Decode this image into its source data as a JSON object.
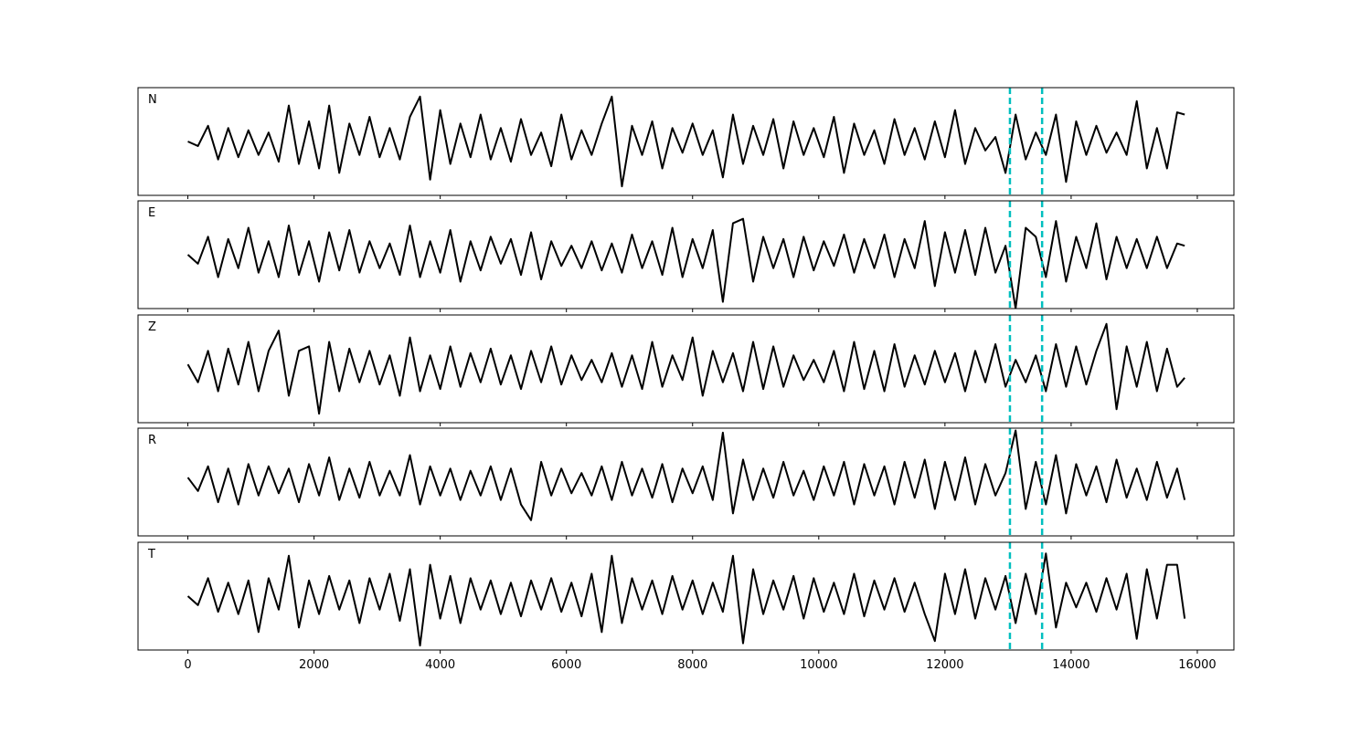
{
  "chart_data": {
    "type": "line",
    "x": [
      0,
      160,
      320,
      480,
      640,
      800,
      960,
      1120,
      1280,
      1440,
      1600,
      1760,
      1920,
      2080,
      2240,
      2400,
      2560,
      2720,
      2880,
      3040,
      3200,
      3360,
      3520,
      3680,
      3840,
      4000,
      4160,
      4320,
      4480,
      4640,
      4800,
      4960,
      5120,
      5280,
      5440,
      5600,
      5760,
      5920,
      6080,
      6240,
      6400,
      6560,
      6720,
      6880,
      7040,
      7200,
      7360,
      7520,
      7680,
      7840,
      8000,
      8160,
      8320,
      8480,
      8640,
      8800,
      8960,
      9120,
      9280,
      9440,
      9600,
      9760,
      9920,
      10080,
      10240,
      10400,
      10560,
      10720,
      10880,
      11040,
      11200,
      11360,
      11520,
      11680,
      11840,
      12000,
      12160,
      12320,
      12480,
      12640,
      12800,
      12960,
      13120,
      13280,
      13440,
      13600,
      13760,
      13920,
      14080,
      14240,
      14400,
      14560,
      14720,
      14880,
      15040,
      15200,
      15360,
      15520,
      15680,
      15800
    ],
    "series": [
      {
        "name": "N",
        "color": "#000000",
        "values": [
          0.0,
          -0.1,
          0.35,
          -0.4,
          0.3,
          -0.35,
          0.25,
          -0.3,
          0.2,
          -0.45,
          0.8,
          -0.5,
          0.45,
          -0.6,
          0.8,
          -0.7,
          0.4,
          -0.3,
          0.55,
          -0.35,
          0.3,
          -0.4,
          0.55,
          1.0,
          -0.85,
          0.7,
          -0.5,
          0.4,
          -0.35,
          0.6,
          -0.4,
          0.3,
          -0.45,
          0.5,
          -0.3,
          0.2,
          -0.55,
          0.6,
          -0.4,
          0.25,
          -0.3,
          0.4,
          1.0,
          -1.0,
          0.35,
          -0.3,
          0.45,
          -0.6,
          0.3,
          -0.25,
          0.4,
          -0.3,
          0.25,
          -0.8,
          0.6,
          -0.5,
          0.35,
          -0.3,
          0.5,
          -0.6,
          0.45,
          -0.3,
          0.3,
          -0.35,
          0.55,
          -0.7,
          0.4,
          -0.3,
          0.25,
          -0.5,
          0.5,
          -0.3,
          0.3,
          -0.4,
          0.45,
          -0.35,
          0.7,
          -0.5,
          0.3,
          -0.2,
          0.1,
          -0.7,
          0.6,
          -0.4,
          0.2,
          -0.3,
          0.6,
          -0.9,
          0.45,
          -0.3,
          0.35,
          -0.25,
          0.2,
          -0.3,
          0.9,
          -0.6,
          0.3,
          -0.6,
          0.65,
          0.6
        ]
      },
      {
        "name": "E",
        "color": "#000000",
        "values": [
          0.0,
          -0.2,
          0.4,
          -0.5,
          0.35,
          -0.3,
          0.6,
          -0.4,
          0.3,
          -0.5,
          0.65,
          -0.45,
          0.3,
          -0.6,
          0.5,
          -0.35,
          0.55,
          -0.4,
          0.3,
          -0.3,
          0.25,
          -0.45,
          0.65,
          -0.5,
          0.3,
          -0.4,
          0.55,
          -0.6,
          0.3,
          -0.35,
          0.4,
          -0.2,
          0.35,
          -0.45,
          0.5,
          -0.55,
          0.3,
          -0.25,
          0.2,
          -0.3,
          0.3,
          -0.35,
          0.25,
          -0.4,
          0.45,
          -0.3,
          0.3,
          -0.45,
          0.6,
          -0.5,
          0.35,
          -0.3,
          0.55,
          -1.05,
          0.7,
          0.8,
          -0.6,
          0.4,
          -0.3,
          0.35,
          -0.5,
          0.4,
          -0.35,
          0.3,
          -0.25,
          0.45,
          -0.4,
          0.35,
          -0.3,
          0.45,
          -0.5,
          0.35,
          -0.3,
          0.75,
          -0.7,
          0.5,
          -0.4,
          0.55,
          -0.45,
          0.6,
          -0.4,
          0.2,
          -1.2,
          0.6,
          0.4,
          -0.5,
          0.75,
          -0.6,
          0.4,
          -0.3,
          0.7,
          -0.55,
          0.4,
          -0.3,
          0.35,
          -0.3,
          0.4,
          -0.3,
          0.25,
          0.2
        ]
      },
      {
        "name": "Z",
        "color": "#000000",
        "values": [
          0.1,
          -0.3,
          0.4,
          -0.5,
          0.45,
          -0.35,
          0.6,
          -0.5,
          0.4,
          0.85,
          -0.6,
          0.4,
          0.5,
          -1.0,
          0.6,
          -0.5,
          0.45,
          -0.3,
          0.4,
          -0.35,
          0.3,
          -0.6,
          0.7,
          -0.5,
          0.3,
          -0.45,
          0.5,
          -0.4,
          0.35,
          -0.3,
          0.45,
          -0.35,
          0.3,
          -0.45,
          0.4,
          -0.3,
          0.5,
          -0.35,
          0.3,
          -0.25,
          0.2,
          -0.3,
          0.35,
          -0.4,
          0.3,
          -0.45,
          0.6,
          -0.4,
          0.3,
          -0.25,
          0.7,
          -0.6,
          0.4,
          -0.3,
          0.35,
          -0.5,
          0.6,
          -0.45,
          0.5,
          -0.4,
          0.3,
          -0.25,
          0.2,
          -0.3,
          0.4,
          -0.5,
          0.6,
          -0.45,
          0.4,
          -0.5,
          0.55,
          -0.4,
          0.3,
          -0.35,
          0.4,
          -0.3,
          0.35,
          -0.5,
          0.4,
          -0.3,
          0.55,
          -0.4,
          0.2,
          -0.3,
          0.3,
          -0.5,
          0.55,
          -0.4,
          0.5,
          -0.35,
          0.4,
          1.0,
          -0.9,
          0.5,
          -0.4,
          0.6,
          -0.5,
          0.45,
          -0.4,
          -0.2
        ]
      },
      {
        "name": "R",
        "color": "#000000",
        "values": [
          0.1,
          -0.2,
          0.35,
          -0.45,
          0.3,
          -0.5,
          0.4,
          -0.3,
          0.35,
          -0.25,
          0.3,
          -0.45,
          0.4,
          -0.3,
          0.55,
          -0.4,
          0.3,
          -0.35,
          0.45,
          -0.3,
          0.25,
          -0.3,
          0.6,
          -0.5,
          0.35,
          -0.3,
          0.3,
          -0.4,
          0.25,
          -0.3,
          0.35,
          -0.4,
          0.3,
          -0.5,
          -0.85,
          0.45,
          -0.3,
          0.3,
          -0.25,
          0.2,
          -0.3,
          0.35,
          -0.4,
          0.45,
          -0.3,
          0.3,
          -0.35,
          0.4,
          -0.45,
          0.3,
          -0.25,
          0.35,
          -0.4,
          1.1,
          -0.7,
          0.5,
          -0.4,
          0.3,
          -0.35,
          0.45,
          -0.3,
          0.25,
          -0.4,
          0.35,
          -0.3,
          0.45,
          -0.5,
          0.4,
          -0.3,
          0.35,
          -0.5,
          0.45,
          -0.35,
          0.5,
          -0.6,
          0.45,
          -0.4,
          0.55,
          -0.5,
          0.4,
          -0.3,
          0.2,
          1.15,
          -0.6,
          0.45,
          -0.5,
          0.6,
          -0.7,
          0.4,
          -0.3,
          0.35,
          -0.45,
          0.5,
          -0.35,
          0.3,
          -0.4,
          0.45,
          -0.35,
          0.3,
          -0.4
        ]
      },
      {
        "name": "T",
        "color": "#000000",
        "values": [
          0.0,
          -0.2,
          0.4,
          -0.35,
          0.3,
          -0.4,
          0.35,
          -0.8,
          0.4,
          -0.3,
          0.9,
          -0.7,
          0.35,
          -0.4,
          0.45,
          -0.3,
          0.35,
          -0.6,
          0.4,
          -0.3,
          0.5,
          -0.55,
          0.6,
          -1.1,
          0.7,
          -0.5,
          0.45,
          -0.6,
          0.4,
          -0.3,
          0.35,
          -0.4,
          0.3,
          -0.45,
          0.35,
          -0.3,
          0.4,
          -0.35,
          0.3,
          -0.45,
          0.5,
          -0.8,
          0.9,
          -0.6,
          0.4,
          -0.3,
          0.35,
          -0.4,
          0.45,
          -0.3,
          0.35,
          -0.4,
          0.3,
          -0.35,
          0.9,
          -1.05,
          0.6,
          -0.4,
          0.35,
          -0.3,
          0.45,
          -0.5,
          0.4,
          -0.35,
          0.3,
          -0.4,
          0.5,
          -0.45,
          0.35,
          -0.3,
          0.4,
          -0.35,
          0.3,
          -0.4,
          -1.0,
          0.5,
          -0.4,
          0.6,
          -0.5,
          0.4,
          -0.3,
          0.45,
          -0.6,
          0.5,
          -0.4,
          0.95,
          -0.7,
          0.3,
          -0.25,
          0.3,
          -0.35,
          0.4,
          -0.3,
          0.5,
          -0.95,
          0.6,
          -0.5,
          0.7,
          0.7,
          -0.5
        ]
      }
    ],
    "xlim": [
      -790,
      16580
    ],
    "xticks": [
      0,
      2000,
      4000,
      6000,
      8000,
      10000,
      12000,
      14000,
      16000
    ],
    "ylim": [
      -1.2,
      1.2
    ],
    "vlines": {
      "values": [
        13030,
        13540
      ],
      "color": "#00bfbf"
    }
  }
}
